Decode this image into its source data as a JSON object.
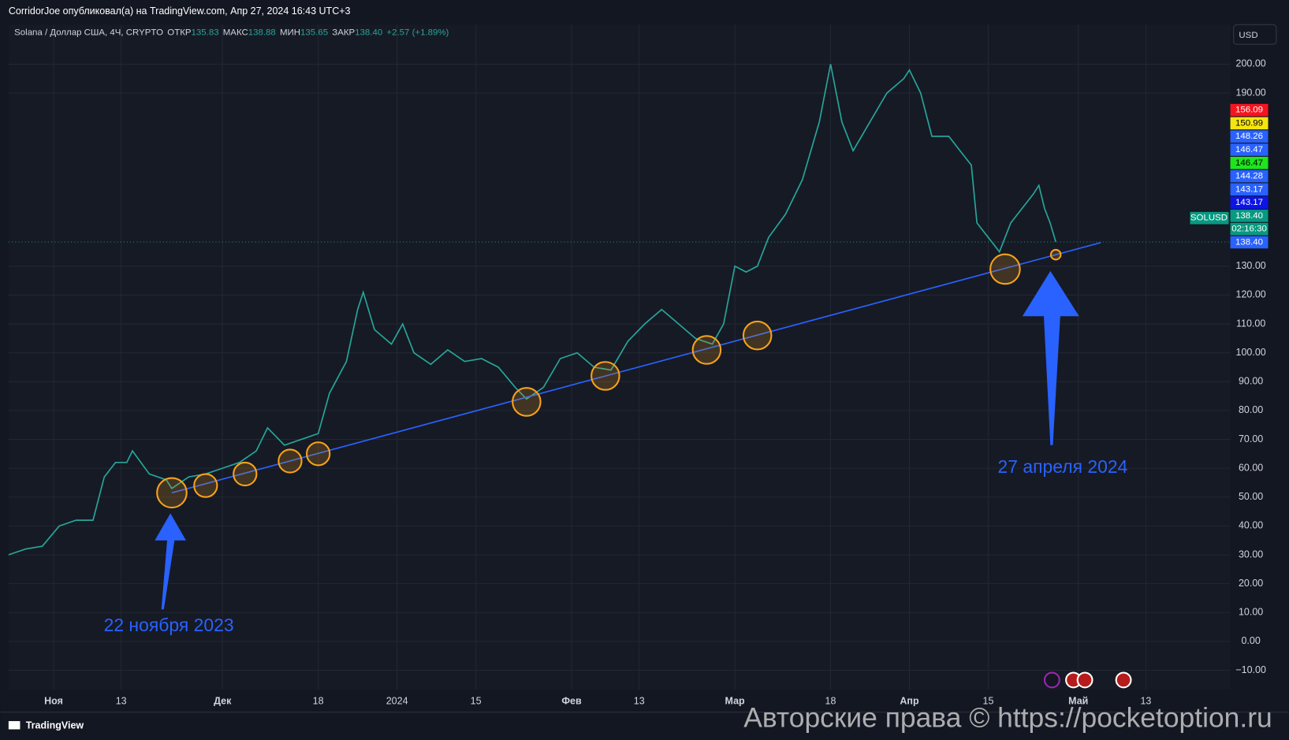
{
  "header": {
    "author_line": "CorridorJoe опубликовал(а) на TradingView.com, Апр 27, 2024 16:43 UTC+3"
  },
  "legend": {
    "symbol": "Solana / Доллар США, 4Ч, CRYPTO",
    "open_label": "ОТКР",
    "open": "135.83",
    "high_label": "МАКС",
    "high": "138.88",
    "low_label": "МИН",
    "low": "135.65",
    "close_label": "ЗАКР",
    "close": "138.40",
    "change": "+2.57 (+1.89%)"
  },
  "currency": "USD",
  "symbol_tag": "SOLUSD",
  "price_labels": [
    {
      "label": "156.09",
      "color": "#f7141f"
    },
    {
      "label": "150.99",
      "color": "#f5e50f"
    },
    {
      "label": "148.26",
      "color": "#2962ff"
    },
    {
      "label": "146.47",
      "color": "#2962ff"
    },
    {
      "label": "146.47",
      "color": "#1ee51e"
    },
    {
      "label": "144.28",
      "color": "#2962ff"
    },
    {
      "label": "143.17",
      "color": "#2962ff"
    },
    {
      "label": "143.17",
      "color": "#0c14e8"
    },
    {
      "label": "138.40",
      "color": "#089981"
    },
    {
      "label": "02:16:30",
      "color": "#089981"
    },
    {
      "label": "138.40",
      "color": "#2962ff"
    }
  ],
  "watermark": "Авторские права © https://pocketoption.ru",
  "brand": "TradingView",
  "chart_data": {
    "type": "line",
    "xlim": [
      "2023-10-24",
      "2024-05-28"
    ],
    "xticks": [
      {
        "value": "2023-11-01",
        "label": "Ноя"
      },
      {
        "value": "2023-11-13",
        "label": "13"
      },
      {
        "value": "2023-12-01",
        "label": "Дек"
      },
      {
        "value": "2023-12-18",
        "label": "18"
      },
      {
        "value": "2024-01-01",
        "label": "2024"
      },
      {
        "value": "2024-01-15",
        "label": "15"
      },
      {
        "value": "2024-02-01",
        "label": "Фев"
      },
      {
        "value": "2024-02-13",
        "label": "13"
      },
      {
        "value": "2024-03-01",
        "label": "Мар"
      },
      {
        "value": "2024-03-18",
        "label": "18"
      },
      {
        "value": "2024-04-01",
        "label": "Апр"
      },
      {
        "value": "2024-04-15",
        "label": "15"
      },
      {
        "value": "2024-05-01",
        "label": "Май"
      },
      {
        "value": "2024-05-13",
        "label": "13"
      }
    ],
    "ylim": [
      -16.8,
      213.7
    ],
    "yticks": [
      {
        "value": -10,
        "label": "−10.00"
      },
      {
        "value": 0,
        "label": "0.00"
      },
      {
        "value": 10,
        "label": "10.00"
      },
      {
        "value": 20,
        "label": "20.00"
      },
      {
        "value": 30,
        "label": "30.00"
      },
      {
        "value": 40,
        "label": "40.00"
      },
      {
        "value": 50,
        "label": "50.00"
      },
      {
        "value": 60,
        "label": "60.00"
      },
      {
        "value": 70,
        "label": "70.00"
      },
      {
        "value": 80,
        "label": "80.00"
      },
      {
        "value": 90,
        "label": "90.00"
      },
      {
        "value": 100,
        "label": "100.00"
      },
      {
        "value": 110,
        "label": "110.00"
      },
      {
        "value": 120,
        "label": "120.00"
      },
      {
        "value": 130,
        "label": "130.00"
      },
      {
        "value": 190,
        "label": "190.00"
      },
      {
        "value": 200,
        "label": "200.00"
      }
    ],
    "grid": true,
    "series": [
      {
        "name": "SOLUSD",
        "color": "#26a69a",
        "x": [
          "2023-10-24",
          "2023-10-27",
          "2023-10-30",
          "2023-11-02",
          "2023-11-05",
          "2023-11-08",
          "2023-11-10",
          "2023-11-12",
          "2023-11-14",
          "2023-11-15",
          "2023-11-18",
          "2023-11-21",
          "2023-11-22",
          "2023-11-25",
          "2023-11-28",
          "2023-12-01",
          "2023-12-04",
          "2023-12-07",
          "2023-12-09",
          "2023-12-12",
          "2023-12-15",
          "2023-12-18",
          "2023-12-20",
          "2023-12-23",
          "2023-12-25",
          "2023-12-26",
          "2023-12-28",
          "2023-12-31",
          "2024-01-02",
          "2024-01-04",
          "2024-01-07",
          "2024-01-10",
          "2024-01-13",
          "2024-01-16",
          "2024-01-19",
          "2024-01-22",
          "2024-01-24",
          "2024-01-27",
          "2024-01-30",
          "2024-02-02",
          "2024-02-05",
          "2024-02-08",
          "2024-02-11",
          "2024-02-14",
          "2024-02-17",
          "2024-02-20",
          "2024-02-23",
          "2024-02-26",
          "2024-02-28",
          "2024-03-01",
          "2024-03-03",
          "2024-03-05",
          "2024-03-07",
          "2024-03-10",
          "2024-03-13",
          "2024-03-16",
          "2024-03-18",
          "2024-03-20",
          "2024-03-22",
          "2024-03-25",
          "2024-03-28",
          "2024-03-31",
          "2024-04-01",
          "2024-04-03",
          "2024-04-05",
          "2024-04-08",
          "2024-04-10",
          "2024-04-12",
          "2024-04-13",
          "2024-04-15",
          "2024-04-17",
          "2024-04-19",
          "2024-04-21",
          "2024-04-23",
          "2024-04-24",
          "2024-04-25",
          "2024-04-26",
          "2024-04-27"
        ],
        "values": [
          30,
          32,
          33,
          40,
          42,
          42,
          57,
          62,
          62,
          66,
          58,
          56,
          53,
          57,
          58,
          60,
          62,
          66,
          74,
          68,
          70,
          72,
          86,
          97,
          115,
          121,
          108,
          103,
          110,
          100,
          96,
          101,
          97,
          98,
          95,
          88,
          84,
          88,
          98,
          100,
          95,
          94,
          104,
          110,
          115,
          110,
          105,
          103,
          110,
          130,
          128,
          130,
          140,
          148,
          160,
          180,
          200,
          180,
          170,
          180,
          190,
          195,
          198,
          190,
          175,
          175,
          170,
          165,
          145,
          140,
          135,
          145,
          150,
          155,
          158,
          150,
          145,
          138.4
        ]
      }
    ],
    "last_price": 138.4,
    "trendline": {
      "x": [
        "2023-11-22",
        "2024-05-05"
      ],
      "values": [
        51.5,
        138.2
      ],
      "color": "#2962ff"
    },
    "highlights": {
      "color": "#f7a21b",
      "x": [
        "2023-11-22",
        "2023-11-28",
        "2023-12-05",
        "2023-12-13",
        "2023-12-18",
        "2024-01-24",
        "2024-02-07",
        "2024-02-25",
        "2024-03-05",
        "2024-04-18",
        "2024-04-27"
      ],
      "values": [
        51.5,
        54,
        58,
        62.5,
        65,
        83,
        92,
        101,
        106,
        129,
        134
      ]
    },
    "annotations": [
      {
        "text": "22 ноября 2023"
      },
      {
        "text": "27 апреля 2024"
      }
    ]
  }
}
